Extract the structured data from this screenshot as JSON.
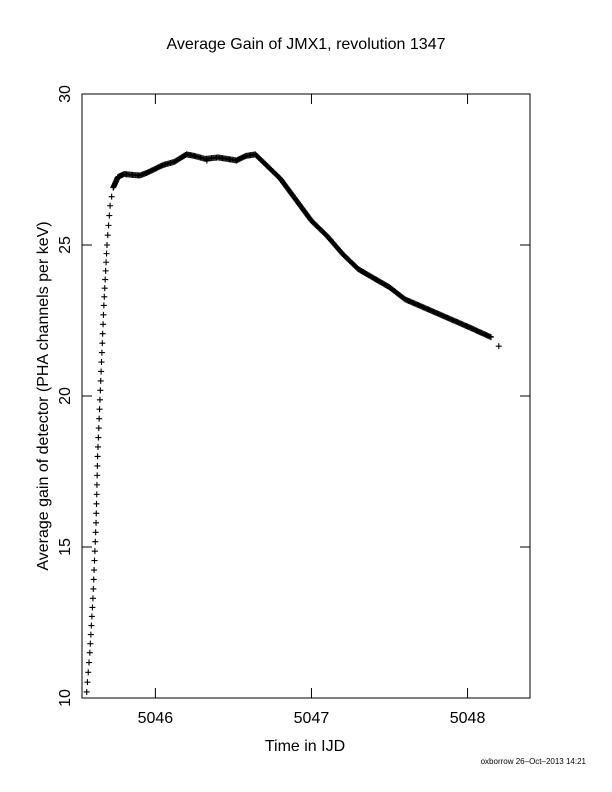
{
  "chart_data": {
    "type": "scatter",
    "title": "Average Gain of JMX1, revolution 1347",
    "xlabel": "Time in IJD",
    "ylabel": "Average gain of detector (PHA channels per keV)",
    "xlim": [
      5045.53,
      5048.4
    ],
    "ylim": [
      10,
      30
    ],
    "xticks": [
      5046,
      5047,
      5048
    ],
    "xtick_labels": [
      "5046",
      "5047",
      "5048"
    ],
    "yticks": [
      10,
      15,
      20,
      25,
      30
    ],
    "ytick_labels": [
      "10",
      "15",
      "20",
      "25",
      "30"
    ],
    "marker": "+",
    "grid": false,
    "series": [
      {
        "anchors": [
          [
            5045.56,
            10.2
          ],
          [
            5045.58,
            11.5
          ],
          [
            5045.6,
            13.3
          ],
          [
            5045.62,
            15.8
          ],
          [
            5045.63,
            18.0
          ],
          [
            5045.65,
            20.5
          ],
          [
            5045.67,
            23.0
          ],
          [
            5045.69,
            25.0
          ],
          [
            5045.71,
            26.3
          ],
          [
            5045.73,
            26.9
          ],
          [
            5045.76,
            27.25
          ],
          [
            5045.8,
            27.35
          ],
          [
            5045.9,
            27.3
          ],
          [
            5045.95,
            27.4
          ],
          [
            5046.05,
            27.65
          ],
          [
            5046.12,
            27.75
          ],
          [
            5046.2,
            28.0
          ],
          [
            5046.25,
            27.95
          ],
          [
            5046.32,
            27.85
          ],
          [
            5046.4,
            27.9
          ],
          [
            5046.52,
            27.8
          ],
          [
            5046.58,
            27.95
          ],
          [
            5046.64,
            28.0
          ],
          [
            5046.7,
            27.7
          ],
          [
            5046.8,
            27.2
          ],
          [
            5046.9,
            26.5
          ],
          [
            5047.0,
            25.8
          ],
          [
            5047.1,
            25.3
          ],
          [
            5047.2,
            24.7
          ],
          [
            5047.3,
            24.2
          ],
          [
            5047.4,
            23.9
          ],
          [
            5047.5,
            23.6
          ],
          [
            5047.6,
            23.2
          ],
          [
            5047.8,
            22.75
          ],
          [
            5048.0,
            22.3
          ],
          [
            5048.15,
            21.95
          ]
        ],
        "extra_points": [
          [
            5048.2,
            21.65
          ],
          [
            5046.33,
            27.8
          ]
        ]
      }
    ]
  },
  "footer": "oxborrow 26–Oct–2013 14:21"
}
